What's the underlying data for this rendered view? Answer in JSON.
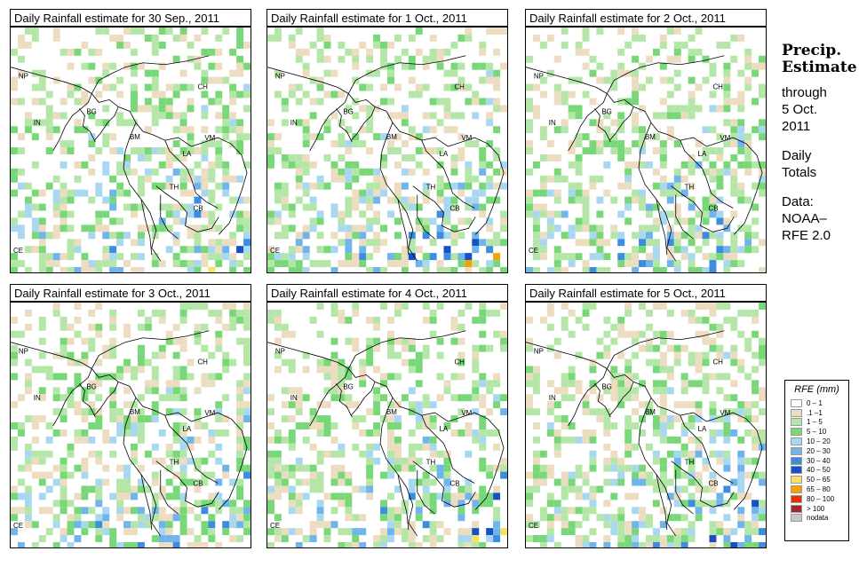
{
  "panels": [
    {
      "title": "Daily Rainfall estimate for  30 Sep., 2011"
    },
    {
      "title": "Daily Rainfall estimate for  1 Oct., 2011"
    },
    {
      "title": "Daily Rainfall estimate for  2 Oct., 2011"
    },
    {
      "title": "Daily Rainfall estimate for  3 Oct., 2011"
    },
    {
      "title": "Daily Rainfall estimate for  4 Oct., 2011"
    },
    {
      "title": "Daily Rainfall estimate for  5 Oct., 2011"
    }
  ],
  "country_labels": {
    "np": "NP",
    "ch": "CH",
    "in": "IN",
    "bg": "BG",
    "bm": "BM",
    "vm": "VM",
    "la": "LA",
    "th": "TH",
    "cb": "CB",
    "ce": "CE"
  },
  "side": {
    "heading1": "Precip.",
    "heading2": "Estimate",
    "line1": "through",
    "line2": "5 Oct.",
    "line3": "2011",
    "line4": "Daily",
    "line5": "Totals",
    "line6": "Data:",
    "line7": "NOAA–",
    "line8": "RFE 2.0"
  },
  "legend": {
    "title": "RFE (mm)",
    "items": [
      {
        "label": "0 – 1",
        "color": "#ffffff"
      },
      {
        "label": ".1 –1",
        "color": "#ecdcc0"
      },
      {
        "label": "1 – 5",
        "color": "#b4e6a8"
      },
      {
        "label": "5 – 10",
        "color": "#78d878"
      },
      {
        "label": "10 – 20",
        "color": "#a8d8f0"
      },
      {
        "label": "20 – 30",
        "color": "#70b4ec"
      },
      {
        "label": "30 – 40",
        "color": "#3c8ce0"
      },
      {
        "label": "40 – 50",
        "color": "#1450c8"
      },
      {
        "label": "50 – 65",
        "color": "#f8e060"
      },
      {
        "label": "65 – 80",
        "color": "#f8a000"
      },
      {
        "label": "80 – 100",
        "color": "#e83000"
      },
      {
        "label": "> 100",
        "color": "#a02828"
      },
      {
        "label": "nodata",
        "color": "#c8c8c8"
      }
    ]
  }
}
